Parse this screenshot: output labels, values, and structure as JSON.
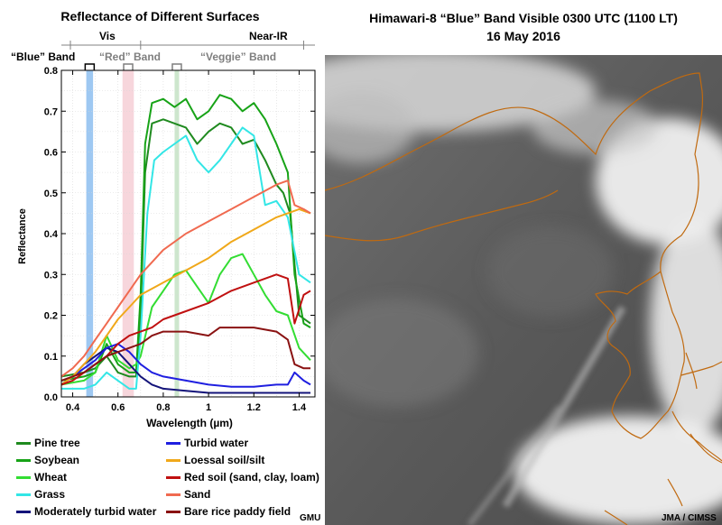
{
  "chart_data": {
    "type": "line",
    "title": "Reflectance of Different Surfaces",
    "xlabel": "Wavelength (µm)",
    "ylabel": "Reflectance",
    "xlim": [
      0.35,
      1.47
    ],
    "ylim": [
      0,
      0.8
    ],
    "xticks": [
      0.4,
      0.6,
      0.8,
      1.0,
      1.2,
      1.4
    ],
    "xtick_labels": [
      "0.4",
      "0.6",
      "0.8",
      "1",
      "1.2",
      "1.4"
    ],
    "yticks": [
      0,
      0.1,
      0.2,
      0.3,
      0.4,
      0.5,
      0.6,
      0.7,
      0.8
    ],
    "ytick_labels": [
      "0.0",
      "0.1",
      "0.2",
      "0.3",
      "0.4",
      "0.5",
      "0.6",
      "0.7",
      "0.8"
    ],
    "regions": [
      {
        "label": "Vis",
        "range": [
          0.35,
          0.7
        ]
      },
      {
        "label": "Near-IR",
        "range": [
          0.7,
          1.45
        ]
      }
    ],
    "bands": [
      {
        "label": "“Blue” Band",
        "range": [
          0.46,
          0.49
        ],
        "color": "#9ec8f2"
      },
      {
        "label": "“Red” Band",
        "range": [
          0.62,
          0.67
        ],
        "color": "#f7d6dc"
      },
      {
        "label": "“Veggie” Band",
        "range": [
          0.85,
          0.87
        ],
        "color": "#cde6cd"
      }
    ],
    "series": [
      {
        "name": "Pine tree",
        "color": "#1f8a1f",
        "points": [
          [
            0.35,
            0.05
          ],
          [
            0.45,
            0.06
          ],
          [
            0.5,
            0.07
          ],
          [
            0.55,
            0.1
          ],
          [
            0.6,
            0.06
          ],
          [
            0.65,
            0.05
          ],
          [
            0.68,
            0.05
          ],
          [
            0.7,
            0.2
          ],
          [
            0.72,
            0.55
          ],
          [
            0.75,
            0.67
          ],
          [
            0.8,
            0.68
          ],
          [
            0.9,
            0.66
          ],
          [
            0.95,
            0.62
          ],
          [
            1.0,
            0.65
          ],
          [
            1.05,
            0.67
          ],
          [
            1.1,
            0.66
          ],
          [
            1.15,
            0.62
          ],
          [
            1.2,
            0.63
          ],
          [
            1.25,
            0.58
          ],
          [
            1.3,
            0.52
          ],
          [
            1.33,
            0.5
          ],
          [
            1.36,
            0.45
          ],
          [
            1.4,
            0.2
          ],
          [
            1.45,
            0.18
          ]
        ]
      },
      {
        "name": "Soybean",
        "color": "#17a317",
        "points": [
          [
            0.35,
            0.04
          ],
          [
            0.45,
            0.05
          ],
          [
            0.5,
            0.06
          ],
          [
            0.55,
            0.13
          ],
          [
            0.6,
            0.08
          ],
          [
            0.65,
            0.06
          ],
          [
            0.68,
            0.06
          ],
          [
            0.7,
            0.25
          ],
          [
            0.72,
            0.62
          ],
          [
            0.75,
            0.72
          ],
          [
            0.8,
            0.73
          ],
          [
            0.85,
            0.71
          ],
          [
            0.9,
            0.73
          ],
          [
            0.95,
            0.68
          ],
          [
            1.0,
            0.7
          ],
          [
            1.05,
            0.74
          ],
          [
            1.1,
            0.73
          ],
          [
            1.15,
            0.7
          ],
          [
            1.2,
            0.72
          ],
          [
            1.25,
            0.68
          ],
          [
            1.3,
            0.62
          ],
          [
            1.35,
            0.55
          ],
          [
            1.38,
            0.3
          ],
          [
            1.42,
            0.18
          ],
          [
            1.45,
            0.17
          ]
        ]
      },
      {
        "name": "Wheat",
        "color": "#33dd33",
        "points": [
          [
            0.35,
            0.03
          ],
          [
            0.45,
            0.04
          ],
          [
            0.5,
            0.06
          ],
          [
            0.55,
            0.15
          ],
          [
            0.6,
            0.09
          ],
          [
            0.65,
            0.07
          ],
          [
            0.68,
            0.08
          ],
          [
            0.7,
            0.1
          ],
          [
            0.75,
            0.22
          ],
          [
            0.8,
            0.26
          ],
          [
            0.85,
            0.3
          ],
          [
            0.9,
            0.31
          ],
          [
            0.95,
            0.27
          ],
          [
            1.0,
            0.23
          ],
          [
            1.05,
            0.3
          ],
          [
            1.1,
            0.34
          ],
          [
            1.15,
            0.35
          ],
          [
            1.2,
            0.3
          ],
          [
            1.25,
            0.25
          ],
          [
            1.3,
            0.21
          ],
          [
            1.35,
            0.2
          ],
          [
            1.4,
            0.12
          ],
          [
            1.45,
            0.09
          ]
        ]
      },
      {
        "name": "Grass",
        "color": "#33e6e6",
        "points": [
          [
            0.35,
            0.02
          ],
          [
            0.45,
            0.02
          ],
          [
            0.5,
            0.03
          ],
          [
            0.55,
            0.06
          ],
          [
            0.6,
            0.04
          ],
          [
            0.65,
            0.02
          ],
          [
            0.68,
            0.02
          ],
          [
            0.7,
            0.15
          ],
          [
            0.73,
            0.45
          ],
          [
            0.76,
            0.58
          ],
          [
            0.8,
            0.6
          ],
          [
            0.85,
            0.62
          ],
          [
            0.9,
            0.64
          ],
          [
            0.95,
            0.58
          ],
          [
            1.0,
            0.55
          ],
          [
            1.05,
            0.58
          ],
          [
            1.1,
            0.62
          ],
          [
            1.15,
            0.66
          ],
          [
            1.2,
            0.64
          ],
          [
            1.25,
            0.47
          ],
          [
            1.3,
            0.48
          ],
          [
            1.35,
            0.44
          ],
          [
            1.4,
            0.3
          ],
          [
            1.45,
            0.28
          ]
        ]
      },
      {
        "name": "Moderately turbid water",
        "color": "#14147a",
        "points": [
          [
            0.35,
            0.03
          ],
          [
            0.4,
            0.05
          ],
          [
            0.45,
            0.08
          ],
          [
            0.5,
            0.1
          ],
          [
            0.55,
            0.12
          ],
          [
            0.6,
            0.11
          ],
          [
            0.65,
            0.08
          ],
          [
            0.7,
            0.05
          ],
          [
            0.75,
            0.03
          ],
          [
            0.8,
            0.02
          ],
          [
            0.9,
            0.015
          ],
          [
            1.0,
            0.01
          ],
          [
            1.2,
            0.01
          ],
          [
            1.4,
            0.01
          ],
          [
            1.45,
            0.01
          ]
        ]
      },
      {
        "name": "Turbid water",
        "color": "#1f1fe0",
        "points": [
          [
            0.35,
            0.03
          ],
          [
            0.4,
            0.05
          ],
          [
            0.45,
            0.07
          ],
          [
            0.5,
            0.09
          ],
          [
            0.55,
            0.12
          ],
          [
            0.6,
            0.13
          ],
          [
            0.65,
            0.11
          ],
          [
            0.7,
            0.08
          ],
          [
            0.75,
            0.06
          ],
          [
            0.8,
            0.05
          ],
          [
            0.9,
            0.04
          ],
          [
            1.0,
            0.03
          ],
          [
            1.1,
            0.025
          ],
          [
            1.2,
            0.025
          ],
          [
            1.3,
            0.03
          ],
          [
            1.35,
            0.03
          ],
          [
            1.38,
            0.06
          ],
          [
            1.42,
            0.04
          ],
          [
            1.45,
            0.03
          ]
        ]
      },
      {
        "name": "Loessal soil/silt",
        "color": "#f0a81a",
        "points": [
          [
            0.35,
            0.03
          ],
          [
            0.4,
            0.05
          ],
          [
            0.45,
            0.08
          ],
          [
            0.5,
            0.11
          ],
          [
            0.55,
            0.15
          ],
          [
            0.6,
            0.19
          ],
          [
            0.65,
            0.22
          ],
          [
            0.7,
            0.25
          ],
          [
            0.8,
            0.28
          ],
          [
            0.9,
            0.31
          ],
          [
            1.0,
            0.34
          ],
          [
            1.1,
            0.38
          ],
          [
            1.2,
            0.41
          ],
          [
            1.3,
            0.44
          ],
          [
            1.4,
            0.46
          ],
          [
            1.45,
            0.45
          ]
        ]
      },
      {
        "name": "Red soil (sand, clay, loam)",
        "color": "#c01010",
        "points": [
          [
            0.35,
            0.03
          ],
          [
            0.4,
            0.04
          ],
          [
            0.45,
            0.06
          ],
          [
            0.5,
            0.08
          ],
          [
            0.55,
            0.1
          ],
          [
            0.6,
            0.13
          ],
          [
            0.65,
            0.15
          ],
          [
            0.7,
            0.16
          ],
          [
            0.75,
            0.17
          ],
          [
            0.8,
            0.19
          ],
          [
            0.9,
            0.21
          ],
          [
            1.0,
            0.23
          ],
          [
            1.1,
            0.26
          ],
          [
            1.2,
            0.28
          ],
          [
            1.3,
            0.3
          ],
          [
            1.35,
            0.29
          ],
          [
            1.38,
            0.18
          ],
          [
            1.42,
            0.25
          ],
          [
            1.45,
            0.26
          ]
        ]
      },
      {
        "name": "Sand",
        "color": "#f06a50",
        "points": [
          [
            0.35,
            0.05
          ],
          [
            0.4,
            0.07
          ],
          [
            0.45,
            0.1
          ],
          [
            0.5,
            0.14
          ],
          [
            0.55,
            0.18
          ],
          [
            0.6,
            0.22
          ],
          [
            0.65,
            0.26
          ],
          [
            0.7,
            0.3
          ],
          [
            0.75,
            0.33
          ],
          [
            0.8,
            0.36
          ],
          [
            0.9,
            0.4
          ],
          [
            1.0,
            0.43
          ],
          [
            1.1,
            0.46
          ],
          [
            1.2,
            0.49
          ],
          [
            1.3,
            0.52
          ],
          [
            1.35,
            0.53
          ],
          [
            1.38,
            0.47
          ],
          [
            1.42,
            0.46
          ],
          [
            1.45,
            0.45
          ]
        ]
      },
      {
        "name": "Bare rice paddy field",
        "color": "#8a1212",
        "points": [
          [
            0.35,
            0.04
          ],
          [
            0.4,
            0.05
          ],
          [
            0.45,
            0.06
          ],
          [
            0.5,
            0.08
          ],
          [
            0.55,
            0.1
          ],
          [
            0.6,
            0.11
          ],
          [
            0.65,
            0.12
          ],
          [
            0.7,
            0.13
          ],
          [
            0.75,
            0.15
          ],
          [
            0.8,
            0.16
          ],
          [
            0.9,
            0.16
          ],
          [
            1.0,
            0.15
          ],
          [
            1.05,
            0.17
          ],
          [
            1.1,
            0.17
          ],
          [
            1.2,
            0.17
          ],
          [
            1.3,
            0.16
          ],
          [
            1.35,
            0.14
          ],
          [
            1.38,
            0.08
          ],
          [
            1.42,
            0.07
          ],
          [
            1.45,
            0.07
          ]
        ]
      }
    ]
  },
  "satellite": {
    "title_line1": "Himawari-8 “Blue” Band Visible  0300 UTC  (1100 LT)",
    "title_line2": "16 May 2016",
    "border_color": "#c06a10"
  },
  "credits": {
    "left": "GMU",
    "right": "JMA / CIMSS"
  }
}
